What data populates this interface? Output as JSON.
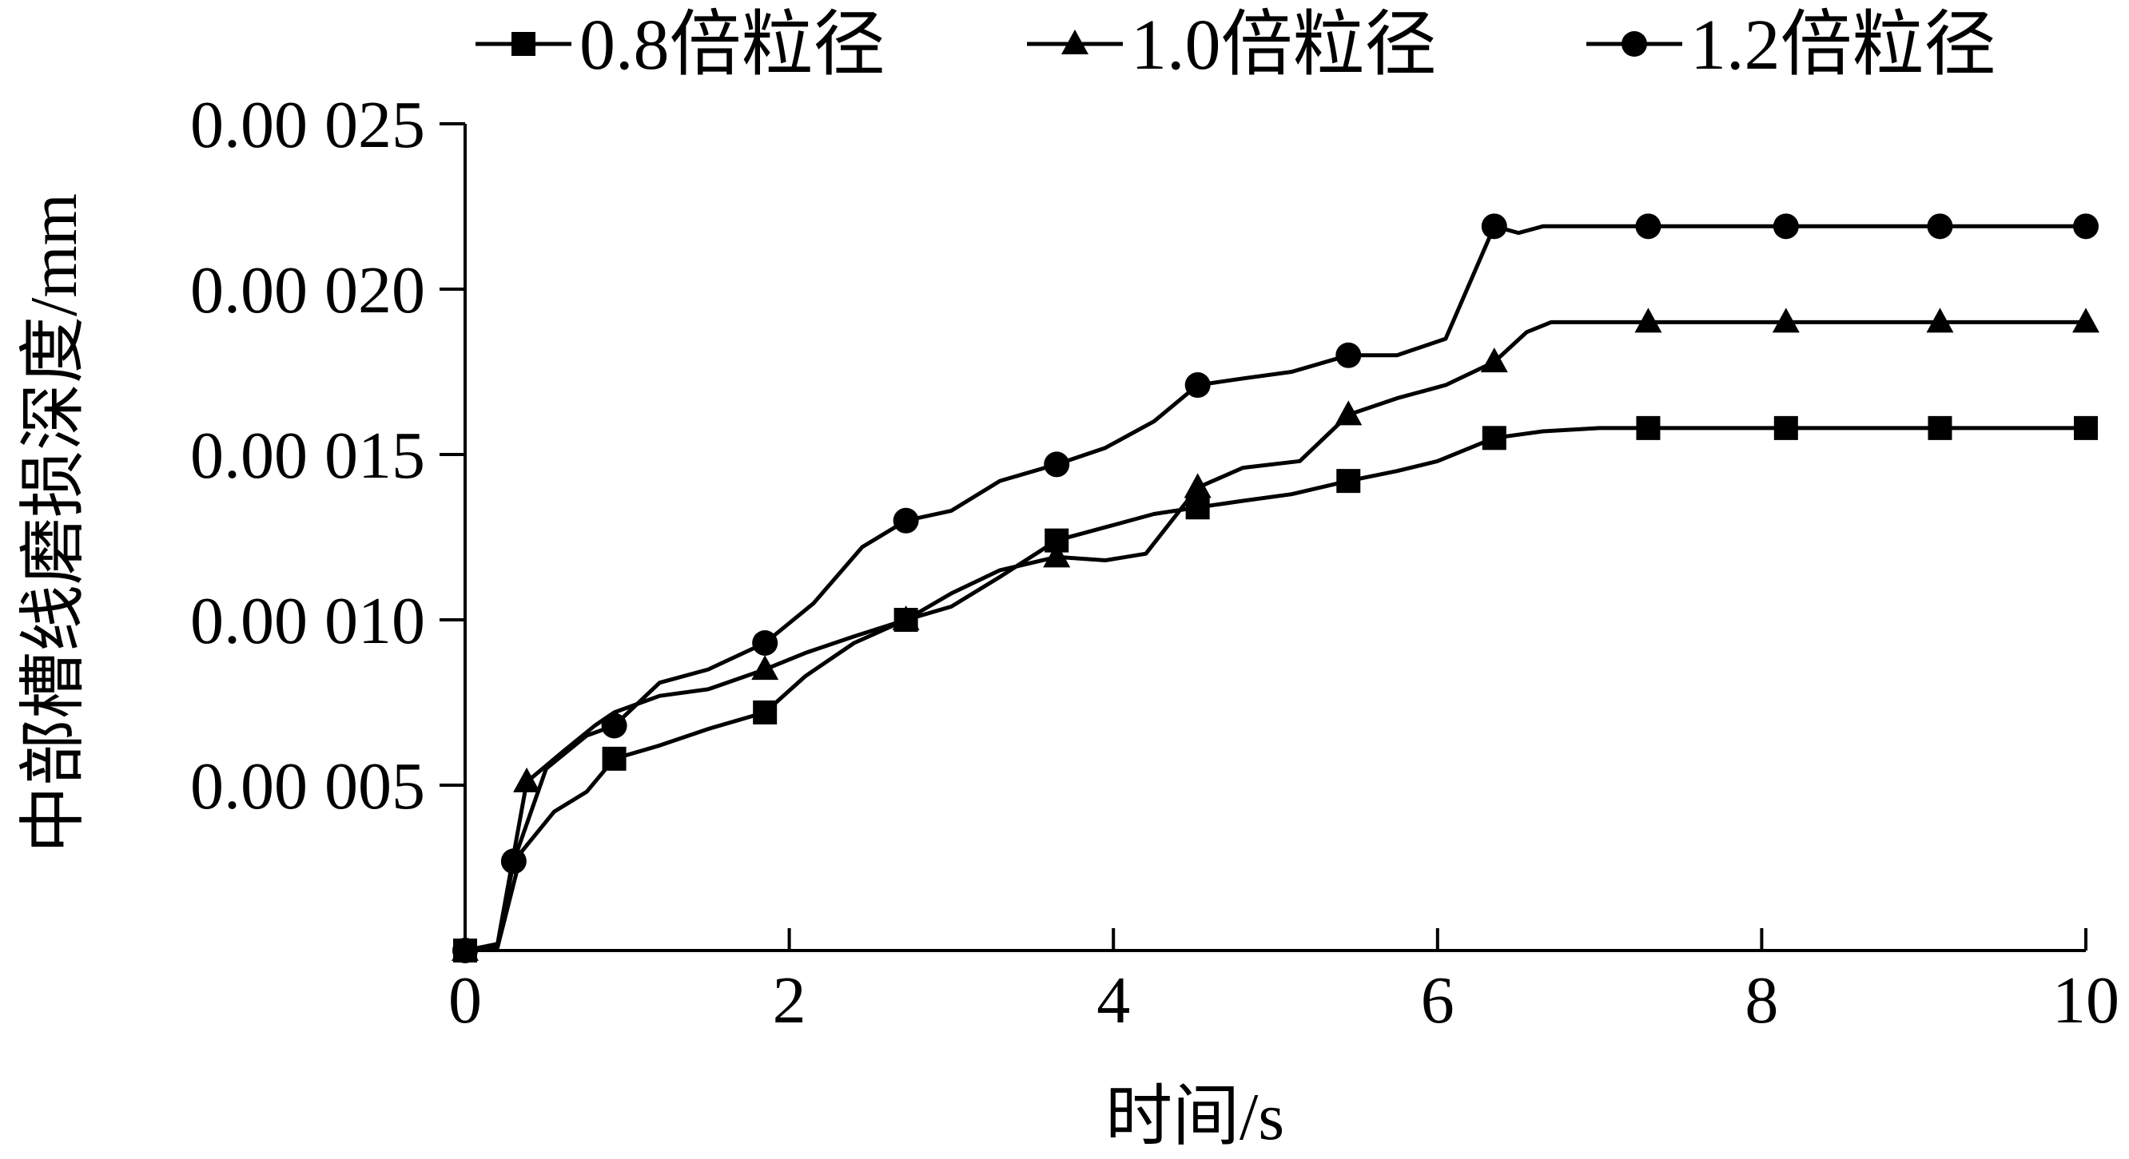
{
  "chart_data": {
    "type": "line",
    "xlabel": "时间/s",
    "ylabel": "中部槽线磨损深度/mm",
    "xlim": [
      0,
      10
    ],
    "ylim": [
      0,
      0.025
    ],
    "x_ticks": [
      {
        "value": 0,
        "label": "0"
      },
      {
        "value": 2,
        "label": "2"
      },
      {
        "value": 4,
        "label": "4"
      },
      {
        "value": 6,
        "label": "6"
      },
      {
        "value": 8,
        "label": "8"
      },
      {
        "value": 10,
        "label": "10"
      }
    ],
    "y_ticks": [
      {
        "value": 0.005,
        "label": "0.00 005"
      },
      {
        "value": 0.01,
        "label": "0.00 010"
      },
      {
        "value": 0.015,
        "label": "0.00 015"
      },
      {
        "value": 0.02,
        "label": "0.00 020"
      },
      {
        "value": 0.025,
        "label": "0.00 025"
      }
    ],
    "grid": false,
    "legend": "top",
    "series": [
      {
        "name": "0.8倍粒径",
        "marker": "square",
        "x": [
          0,
          0.2,
          0.35,
          0.55,
          0.75,
          0.92,
          1.2,
          1.5,
          1.85,
          2.1,
          2.4,
          2.72,
          3.0,
          3.3,
          3.65,
          3.95,
          4.25,
          4.52,
          4.8,
          5.1,
          5.45,
          5.75,
          6.0,
          6.35,
          6.65,
          7.0,
          7.3,
          8.15,
          9.1,
          10.0
        ],
        "y": [
          0,
          0.0001,
          0.003,
          0.0042,
          0.0048,
          0.0058,
          0.0062,
          0.0067,
          0.0072,
          0.0083,
          0.0093,
          0.01,
          0.0104,
          0.0113,
          0.0124,
          0.0128,
          0.0132,
          0.0134,
          0.0136,
          0.0138,
          0.0142,
          0.0145,
          0.0148,
          0.0155,
          0.0157,
          0.0158,
          0.0158,
          0.0158,
          0.0158,
          0.0158
        ],
        "marker_x": [
          0,
          0.92,
          1.85,
          2.72,
          3.65,
          4.52,
          5.45,
          6.35,
          7.3,
          8.15,
          9.1,
          10.0
        ],
        "marker_y": [
          0,
          0.0058,
          0.0072,
          0.01,
          0.0124,
          0.0134,
          0.0142,
          0.0155,
          0.0158,
          0.0158,
          0.0158,
          0.0158
        ]
      },
      {
        "name": "1.0倍粒径",
        "marker": "triangle",
        "x": [
          0,
          0.2,
          0.38,
          0.6,
          0.8,
          0.92,
          1.2,
          1.5,
          1.85,
          2.1,
          2.4,
          2.72,
          3.0,
          3.3,
          3.65,
          3.95,
          4.2,
          4.52,
          4.8,
          5.15,
          5.45,
          5.75,
          6.05,
          6.35,
          6.55,
          6.7,
          7.3,
          8.15,
          9.1,
          10.0
        ],
        "y": [
          0,
          0.0002,
          0.0051,
          0.006,
          0.0068,
          0.0072,
          0.0077,
          0.0079,
          0.0085,
          0.009,
          0.0095,
          0.01,
          0.0108,
          0.0115,
          0.0119,
          0.0118,
          0.012,
          0.014,
          0.0146,
          0.0148,
          0.0162,
          0.0167,
          0.0171,
          0.0178,
          0.0187,
          0.019,
          0.019,
          0.019,
          0.019,
          0.019
        ],
        "marker_x": [
          0,
          0.38,
          1.85,
          2.72,
          3.65,
          4.52,
          5.45,
          6.35,
          7.3,
          8.15,
          9.1,
          10.0
        ],
        "marker_y": [
          0,
          0.0051,
          0.0085,
          0.01,
          0.0119,
          0.014,
          0.0162,
          0.0178,
          0.019,
          0.019,
          0.019,
          0.019
        ]
      },
      {
        "name": "1.2倍粒径",
        "marker": "circle",
        "x": [
          0,
          0.2,
          0.3,
          0.5,
          0.75,
          0.92,
          1.2,
          1.5,
          1.85,
          2.15,
          2.45,
          2.72,
          3.0,
          3.3,
          3.65,
          3.95,
          4.25,
          4.52,
          4.8,
          5.1,
          5.45,
          5.75,
          6.05,
          6.35,
          6.5,
          6.65,
          7.3,
          8.15,
          9.1,
          10.0
        ],
        "y": [
          0,
          0.0001,
          0.0027,
          0.0055,
          0.0065,
          0.0068,
          0.0081,
          0.0085,
          0.0093,
          0.0105,
          0.0122,
          0.013,
          0.0133,
          0.0142,
          0.0147,
          0.0152,
          0.016,
          0.0171,
          0.0173,
          0.0175,
          0.018,
          0.018,
          0.0185,
          0.0219,
          0.0217,
          0.0219,
          0.0219,
          0.0219,
          0.0219,
          0.0219
        ],
        "marker_x": [
          0,
          0.3,
          0.92,
          1.85,
          2.72,
          3.65,
          4.52,
          5.45,
          6.35,
          7.3,
          8.15,
          9.1,
          10.0
        ],
        "marker_y": [
          0,
          0.0027,
          0.0068,
          0.0093,
          0.013,
          0.0147,
          0.0171,
          0.018,
          0.0219,
          0.0219,
          0.0219,
          0.0219,
          0.0219
        ]
      }
    ]
  }
}
